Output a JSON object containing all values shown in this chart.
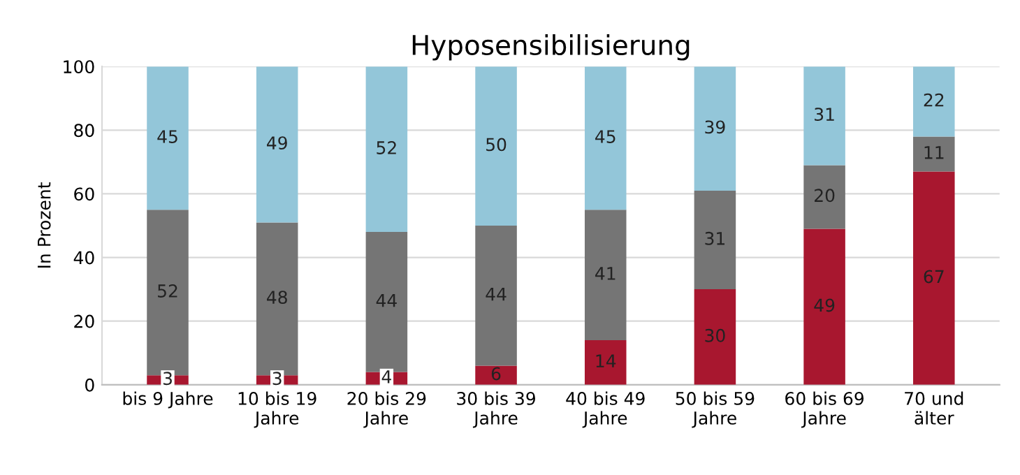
{
  "chart_data": {
    "type": "bar",
    "title": "Hyposensibilisierung",
    "ylabel": "In Prozent",
    "categories": [
      "bis 9 Jahre",
      "10 bis 19\nJahre",
      "20 bis 29\nJahre",
      "30 bis 39\nJahre",
      "40 bis 49\nJahre",
      "50 bis 59\nJahre",
      "60 bis 69\nJahre",
      "70 und\nälter"
    ],
    "stacked": true,
    "data_labels": true,
    "grid": "y",
    "legend": false,
    "ylim": [
      0,
      100
    ],
    "yticks": [
      0,
      20,
      40,
      60,
      80,
      100
    ],
    "series": [
      {
        "color": "#a8172f",
        "values": [
          3,
          3,
          4,
          6,
          14,
          30,
          49,
          67
        ]
      },
      {
        "color": "#757575",
        "values": [
          52,
          48,
          44,
          44,
          41,
          31,
          20,
          11
        ]
      },
      {
        "color": "#93c6d9",
        "values": [
          45,
          49,
          52,
          50,
          45,
          39,
          31,
          22
        ]
      }
    ]
  }
}
